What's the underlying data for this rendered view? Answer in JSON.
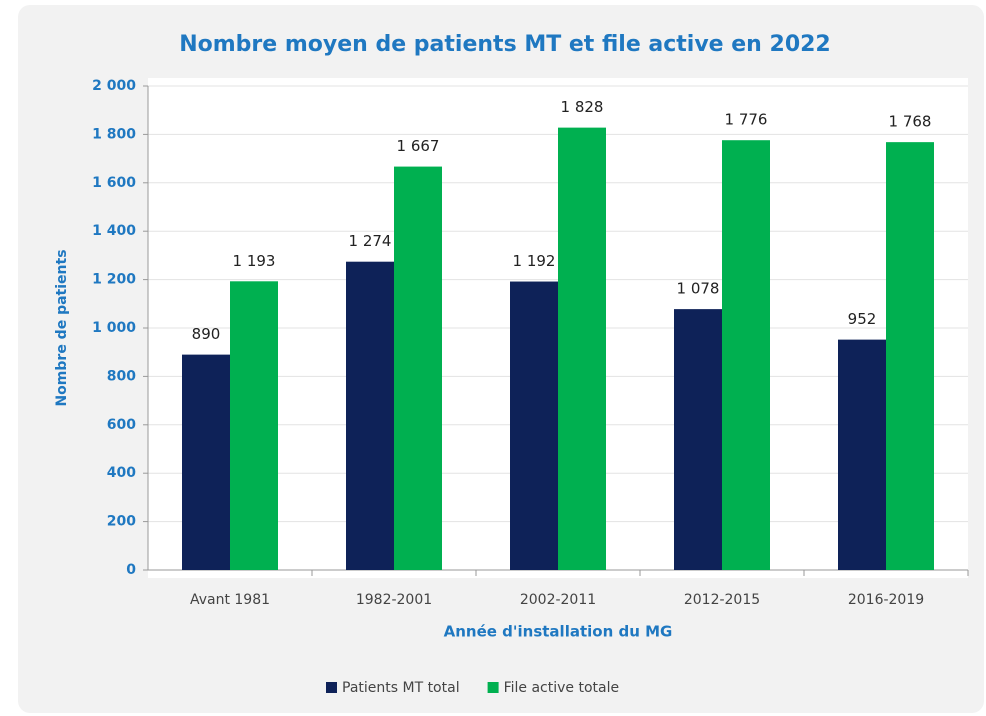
{
  "chart_data": {
    "type": "bar",
    "title": "Nombre moyen de patients MT et file active en 2022",
    "x_label": "Année d'installation du MG",
    "y_label": "Nombre de patients",
    "categories": [
      "Avant 1981",
      "1982-2001",
      "2002-2011",
      "2012-2015",
      "2016-2019"
    ],
    "series": [
      {
        "name": "Patients MT total",
        "color": "#0e2258",
        "values": [
          890,
          1274,
          1192,
          1078,
          952
        ],
        "value_labels": [
          "890",
          "1 274",
          "1 192",
          "1 078",
          "952"
        ]
      },
      {
        "name": "File active totale",
        "color": "#00b050",
        "values": [
          1193,
          1667,
          1828,
          1776,
          1768
        ],
        "value_labels": [
          "1 193",
          "1 667",
          "1 828",
          "1 776",
          "1 768"
        ]
      }
    ],
    "ylim": [
      0,
      2000
    ],
    "yticks": [
      0,
      200,
      400,
      600,
      800,
      {
        "value": 1000,
        "label": "1 000"
      },
      {
        "value": 1200,
        "label": "1 200"
      },
      {
        "value": 1400,
        "label": "1 400"
      },
      {
        "value": 1600,
        "label": "1 600"
      },
      {
        "value": 1800,
        "label": "1 800"
      },
      {
        "value": 2000,
        "label": "2 000"
      }
    ],
    "grid": true,
    "legend": "bottom"
  }
}
